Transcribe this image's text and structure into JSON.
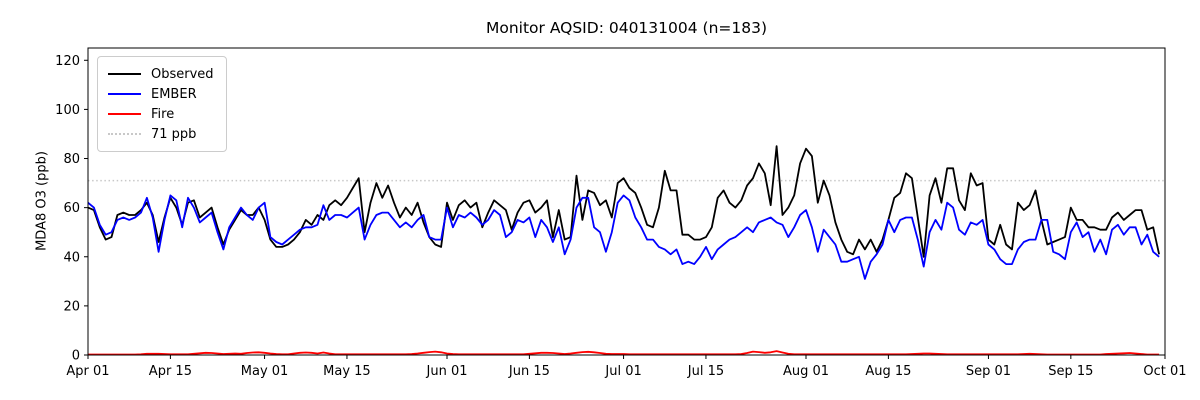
{
  "figure": {
    "title": "Monitor AQSID: 040131004 (n=183)",
    "background_color": "#ffffff"
  },
  "chart_data": {
    "type": "line",
    "title": "Monitor AQSID: 040131004 (n=183)",
    "xlabel": "",
    "ylabel": "MDA8 O3 (ppb)",
    "grid": false,
    "legend_position": "upper-left",
    "ylim": [
      0,
      125
    ],
    "yticks": [
      0,
      20,
      40,
      60,
      80,
      100,
      120
    ],
    "x_range_days": [
      0,
      183
    ],
    "x_unit": "days since Apr 01",
    "xticks": [
      {
        "day": 0,
        "label": "Apr 01"
      },
      {
        "day": 14,
        "label": "Apr 15"
      },
      {
        "day": 30,
        "label": "May 01"
      },
      {
        "day": 44,
        "label": "May 15"
      },
      {
        "day": 61,
        "label": "Jun 01"
      },
      {
        "day": 75,
        "label": "Jun 15"
      },
      {
        "day": 91,
        "label": "Jul 01"
      },
      {
        "day": 105,
        "label": "Jul 15"
      },
      {
        "day": 122,
        "label": "Aug 01"
      },
      {
        "day": 136,
        "label": "Aug 15"
      },
      {
        "day": 153,
        "label": "Sep 01"
      },
      {
        "day": 167,
        "label": "Sep 15"
      },
      {
        "day": 183,
        "label": "Oct 01"
      }
    ],
    "threshold_line": {
      "value": 71,
      "label": "71 ppb",
      "color": "#c8c8c8",
      "linestyle": "dotted"
    },
    "series": [
      {
        "name": "Observed",
        "color": "#000000",
        "values": [
          60,
          59,
          52,
          47,
          48,
          57,
          58,
          57,
          57,
          59,
          62,
          57,
          46,
          56,
          64,
          60,
          53,
          62,
          63,
          56,
          58,
          60,
          52,
          45,
          51,
          55,
          59,
          57,
          57,
          60,
          55,
          47,
          44,
          44,
          45,
          47,
          50,
          55,
          53,
          57,
          55,
          61,
          63,
          61,
          64,
          68,
          72,
          50,
          62,
          70,
          64,
          69,
          62,
          56,
          60,
          57,
          62,
          54,
          48,
          45,
          44,
          62,
          55,
          61,
          63,
          60,
          62,
          52,
          58,
          63,
          61,
          59,
          51,
          58,
          62,
          63,
          58,
          60,
          63,
          48,
          59,
          47,
          48,
          73,
          55,
          67,
          66,
          61,
          63,
          56,
          70,
          72,
          68,
          66,
          60,
          53,
          52,
          60,
          75,
          67,
          67,
          49,
          49,
          47,
          47,
          48,
          52,
          64,
          67,
          62,
          60,
          63,
          69,
          72,
          78,
          74,
          61,
          85,
          57,
          60,
          65,
          78,
          84,
          81,
          62,
          71,
          65,
          54,
          47,
          42,
          41,
          47,
          43,
          47,
          42,
          47,
          55,
          64,
          66,
          74,
          72,
          56,
          40,
          65,
          72,
          62,
          76,
          76,
          63,
          59,
          74,
          69,
          70,
          47,
          45,
          53,
          45,
          43,
          62,
          59,
          61,
          67,
          55,
          45,
          46,
          47,
          48,
          60,
          55,
          55,
          52,
          52,
          51,
          51,
          56,
          58,
          55,
          57,
          59,
          59,
          51,
          52,
          41
        ]
      },
      {
        "name": "EMBER",
        "color": "#0000ff",
        "values": [
          62,
          60,
          53,
          49,
          50,
          55,
          56,
          55,
          56,
          58,
          64,
          56,
          42,
          55,
          65,
          63,
          52,
          64,
          60,
          54,
          56,
          58,
          50,
          43,
          52,
          56,
          60,
          57,
          55,
          60,
          62,
          48,
          46,
          45,
          47,
          49,
          51,
          52,
          52,
          53,
          61,
          55,
          57,
          57,
          56,
          58,
          60,
          47,
          53,
          57,
          58,
          58,
          55,
          52,
          54,
          52,
          55,
          57,
          48,
          47,
          47,
          60,
          52,
          57,
          56,
          58,
          56,
          53,
          55,
          59,
          57,
          48,
          50,
          55,
          54,
          56,
          48,
          55,
          52,
          46,
          52,
          41,
          47,
          60,
          64,
          64,
          52,
          50,
          42,
          50,
          62,
          65,
          63,
          56,
          52,
          47,
          47,
          44,
          43,
          41,
          43,
          37,
          38,
          37,
          40,
          44,
          39,
          43,
          45,
          47,
          48,
          50,
          52,
          50,
          54,
          55,
          56,
          54,
          53,
          48,
          52,
          57,
          59,
          52,
          42,
          51,
          48,
          45,
          38,
          38,
          39,
          40,
          31,
          38,
          41,
          45,
          55,
          50,
          55,
          56,
          56,
          47,
          36,
          50,
          55,
          51,
          62,
          60,
          51,
          49,
          54,
          53,
          55,
          45,
          43,
          39,
          37,
          37,
          43,
          46,
          47,
          47,
          55,
          55,
          42,
          41,
          39,
          50,
          54,
          48,
          50,
          42,
          47,
          41,
          51,
          53,
          49,
          52,
          52,
          45,
          49,
          42,
          40
        ]
      },
      {
        "name": "Fire",
        "color": "#ff0000",
        "values": [
          0.2,
          0.2,
          0.2,
          0.2,
          0.2,
          0.2,
          0.2,
          0.2,
          0.2,
          0.3,
          0.5,
          0.5,
          0.5,
          0.4,
          0.3,
          0.3,
          0.3,
          0.3,
          0.5,
          0.7,
          0.9,
          0.8,
          0.6,
          0.4,
          0.5,
          0.6,
          0.5,
          0.8,
          1.0,
          1.1,
          0.9,
          0.6,
          0.4,
          0.3,
          0.3,
          0.6,
          0.9,
          1.0,
          0.9,
          0.6,
          1.0,
          0.6,
          0.3,
          0.3,
          0.3,
          0.3,
          0.3,
          0.3,
          0.3,
          0.3,
          0.3,
          0.3,
          0.3,
          0.3,
          0.3,
          0.4,
          0.6,
          0.9,
          1.2,
          1.4,
          1.1,
          0.6,
          0.4,
          0.3,
          0.3,
          0.3,
          0.3,
          0.3,
          0.3,
          0.3,
          0.3,
          0.3,
          0.3,
          0.3,
          0.3,
          0.5,
          0.7,
          0.9,
          0.9,
          0.8,
          0.6,
          0.4,
          0.6,
          0.9,
          1.2,
          1.3,
          1.1,
          0.8,
          0.5,
          0.4,
          0.4,
          0.4,
          0.3,
          0.3,
          0.3,
          0.3,
          0.3,
          0.3,
          0.3,
          0.3,
          0.3,
          0.3,
          0.3,
          0.3,
          0.3,
          0.3,
          0.3,
          0.3,
          0.3,
          0.3,
          0.3,
          0.4,
          0.8,
          1.4,
          1.2,
          0.9,
          1.1,
          1.6,
          1.0,
          0.5,
          0.3,
          0.3,
          0.3,
          0.3,
          0.3,
          0.3,
          0.3,
          0.3,
          0.3,
          0.3,
          0.3,
          0.3,
          0.3,
          0.3,
          0.3,
          0.3,
          0.3,
          0.3,
          0.3,
          0.3,
          0.4,
          0.5,
          0.6,
          0.6,
          0.5,
          0.4,
          0.3,
          0.3,
          0.3,
          0.3,
          0.3,
          0.3,
          0.3,
          0.3,
          0.3,
          0.3,
          0.3,
          0.3,
          0.3,
          0.4,
          0.5,
          0.4,
          0.3,
          0.2,
          0.2,
          0.2,
          0.2,
          0.2,
          0.2,
          0.2,
          0.2,
          0.2,
          0.2,
          0.4,
          0.5,
          0.6,
          0.7,
          0.8,
          0.6,
          0.4,
          0.2,
          0.2,
          0.2
        ]
      }
    ]
  }
}
